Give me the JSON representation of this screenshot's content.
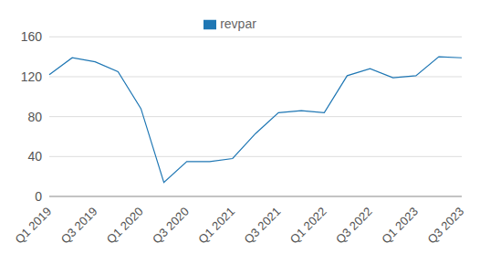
{
  "chart_data": {
    "type": "line",
    "categories": [
      "Q1 2019",
      null,
      "Q3 2019",
      null,
      "Q1 2020",
      null,
      "Q3 2020",
      null,
      "Q1 2021",
      null,
      "Q3 2021",
      null,
      "Q1 2022",
      null,
      "Q3 2022",
      null,
      "Q1 2023",
      null,
      "Q3 2023"
    ],
    "series": [
      {
        "name": "revpar",
        "color": "#1f77b4",
        "values": [
          122,
          139,
          135,
          125,
          88,
          14,
          35,
          35,
          38,
          63,
          84,
          86,
          84,
          121,
          128,
          119,
          121,
          140,
          139
        ]
      }
    ],
    "ylim": [
      0,
      160
    ],
    "yticks": [
      0,
      40,
      80,
      120,
      160
    ],
    "grid": true,
    "legend": "top"
  }
}
